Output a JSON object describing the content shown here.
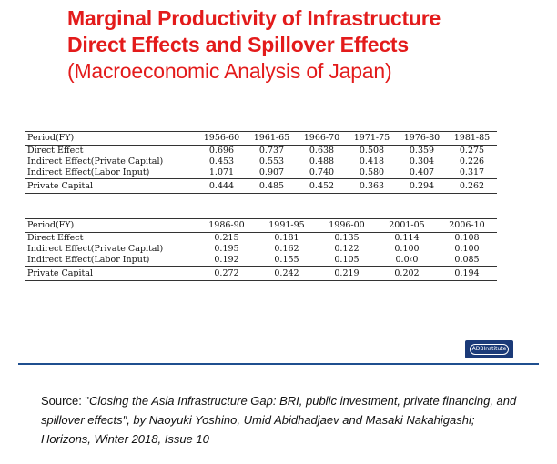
{
  "title": {
    "line1": "Marginal Productivity of Infrastructure",
    "line2": "Direct Effects and Spillover Effects",
    "line3": "(Macroeconomic Analysis of Japan)"
  },
  "table1": {
    "header": "Period(FY)",
    "periods": [
      "1956-60",
      "1961-65",
      "1966-70",
      "1971-75",
      "1976-80",
      "1981-85"
    ],
    "rows": [
      {
        "label": "Direct Effect",
        "values": [
          "0.696",
          "0.737",
          "0.638",
          "0.508",
          "0.359",
          "0.275"
        ]
      },
      {
        "label": "Indirect Effect(Private Capital)",
        "values": [
          "0.453",
          "0.553",
          "0.488",
          "0.418",
          "0.304",
          "0.226"
        ]
      },
      {
        "label": "Indirect Effect(Labor Input)",
        "values": [
          "1.071",
          "0.907",
          "0.740",
          "0.580",
          "0.407",
          "0.317"
        ]
      },
      {
        "label": "Private Capital",
        "values": [
          "0.444",
          "0.485",
          "0.452",
          "0.363",
          "0.294",
          "0.262"
        ]
      }
    ]
  },
  "table2": {
    "header": "Period(FY)",
    "periods": [
      "1986-90",
      "1991-95",
      "1996-00",
      "2001-05",
      "2006-10"
    ],
    "rows": [
      {
        "label": "Direct Effect",
        "values": [
          "0.215",
          "0.181",
          "0.135",
          "0.114",
          "0.108"
        ]
      },
      {
        "label": "Indirect Effect(Private Capital)",
        "values": [
          "0.195",
          "0.162",
          "0.122",
          "0.100",
          "0.100"
        ]
      },
      {
        "label": "Indirect Effect(Labor Input)",
        "values": [
          "0.192",
          "0.155",
          "0.105",
          "0.0‹0",
          "0.085"
        ]
      },
      {
        "label": "Private Capital",
        "values": [
          "0.272",
          "0.242",
          "0.219",
          "0.202",
          "0.194"
        ]
      }
    ]
  },
  "logo": {
    "text": "ADBInstitute",
    "background": "#1b3a78"
  },
  "colors": {
    "title": "#e31b1b",
    "rule": "#1f4f8f"
  },
  "source": {
    "prefix": "Source: \"",
    "title": "Closing the Asia Infrastructure Gap: BRI, public investment, private financing, and spillover effects",
    "rest": "\", by Naoyuki Yoshino, Umid Abidhadjaev and ",
    "authors_tail": "Masaki Nakahigashi; Horizons, Winter 2018, Issue 10"
  }
}
